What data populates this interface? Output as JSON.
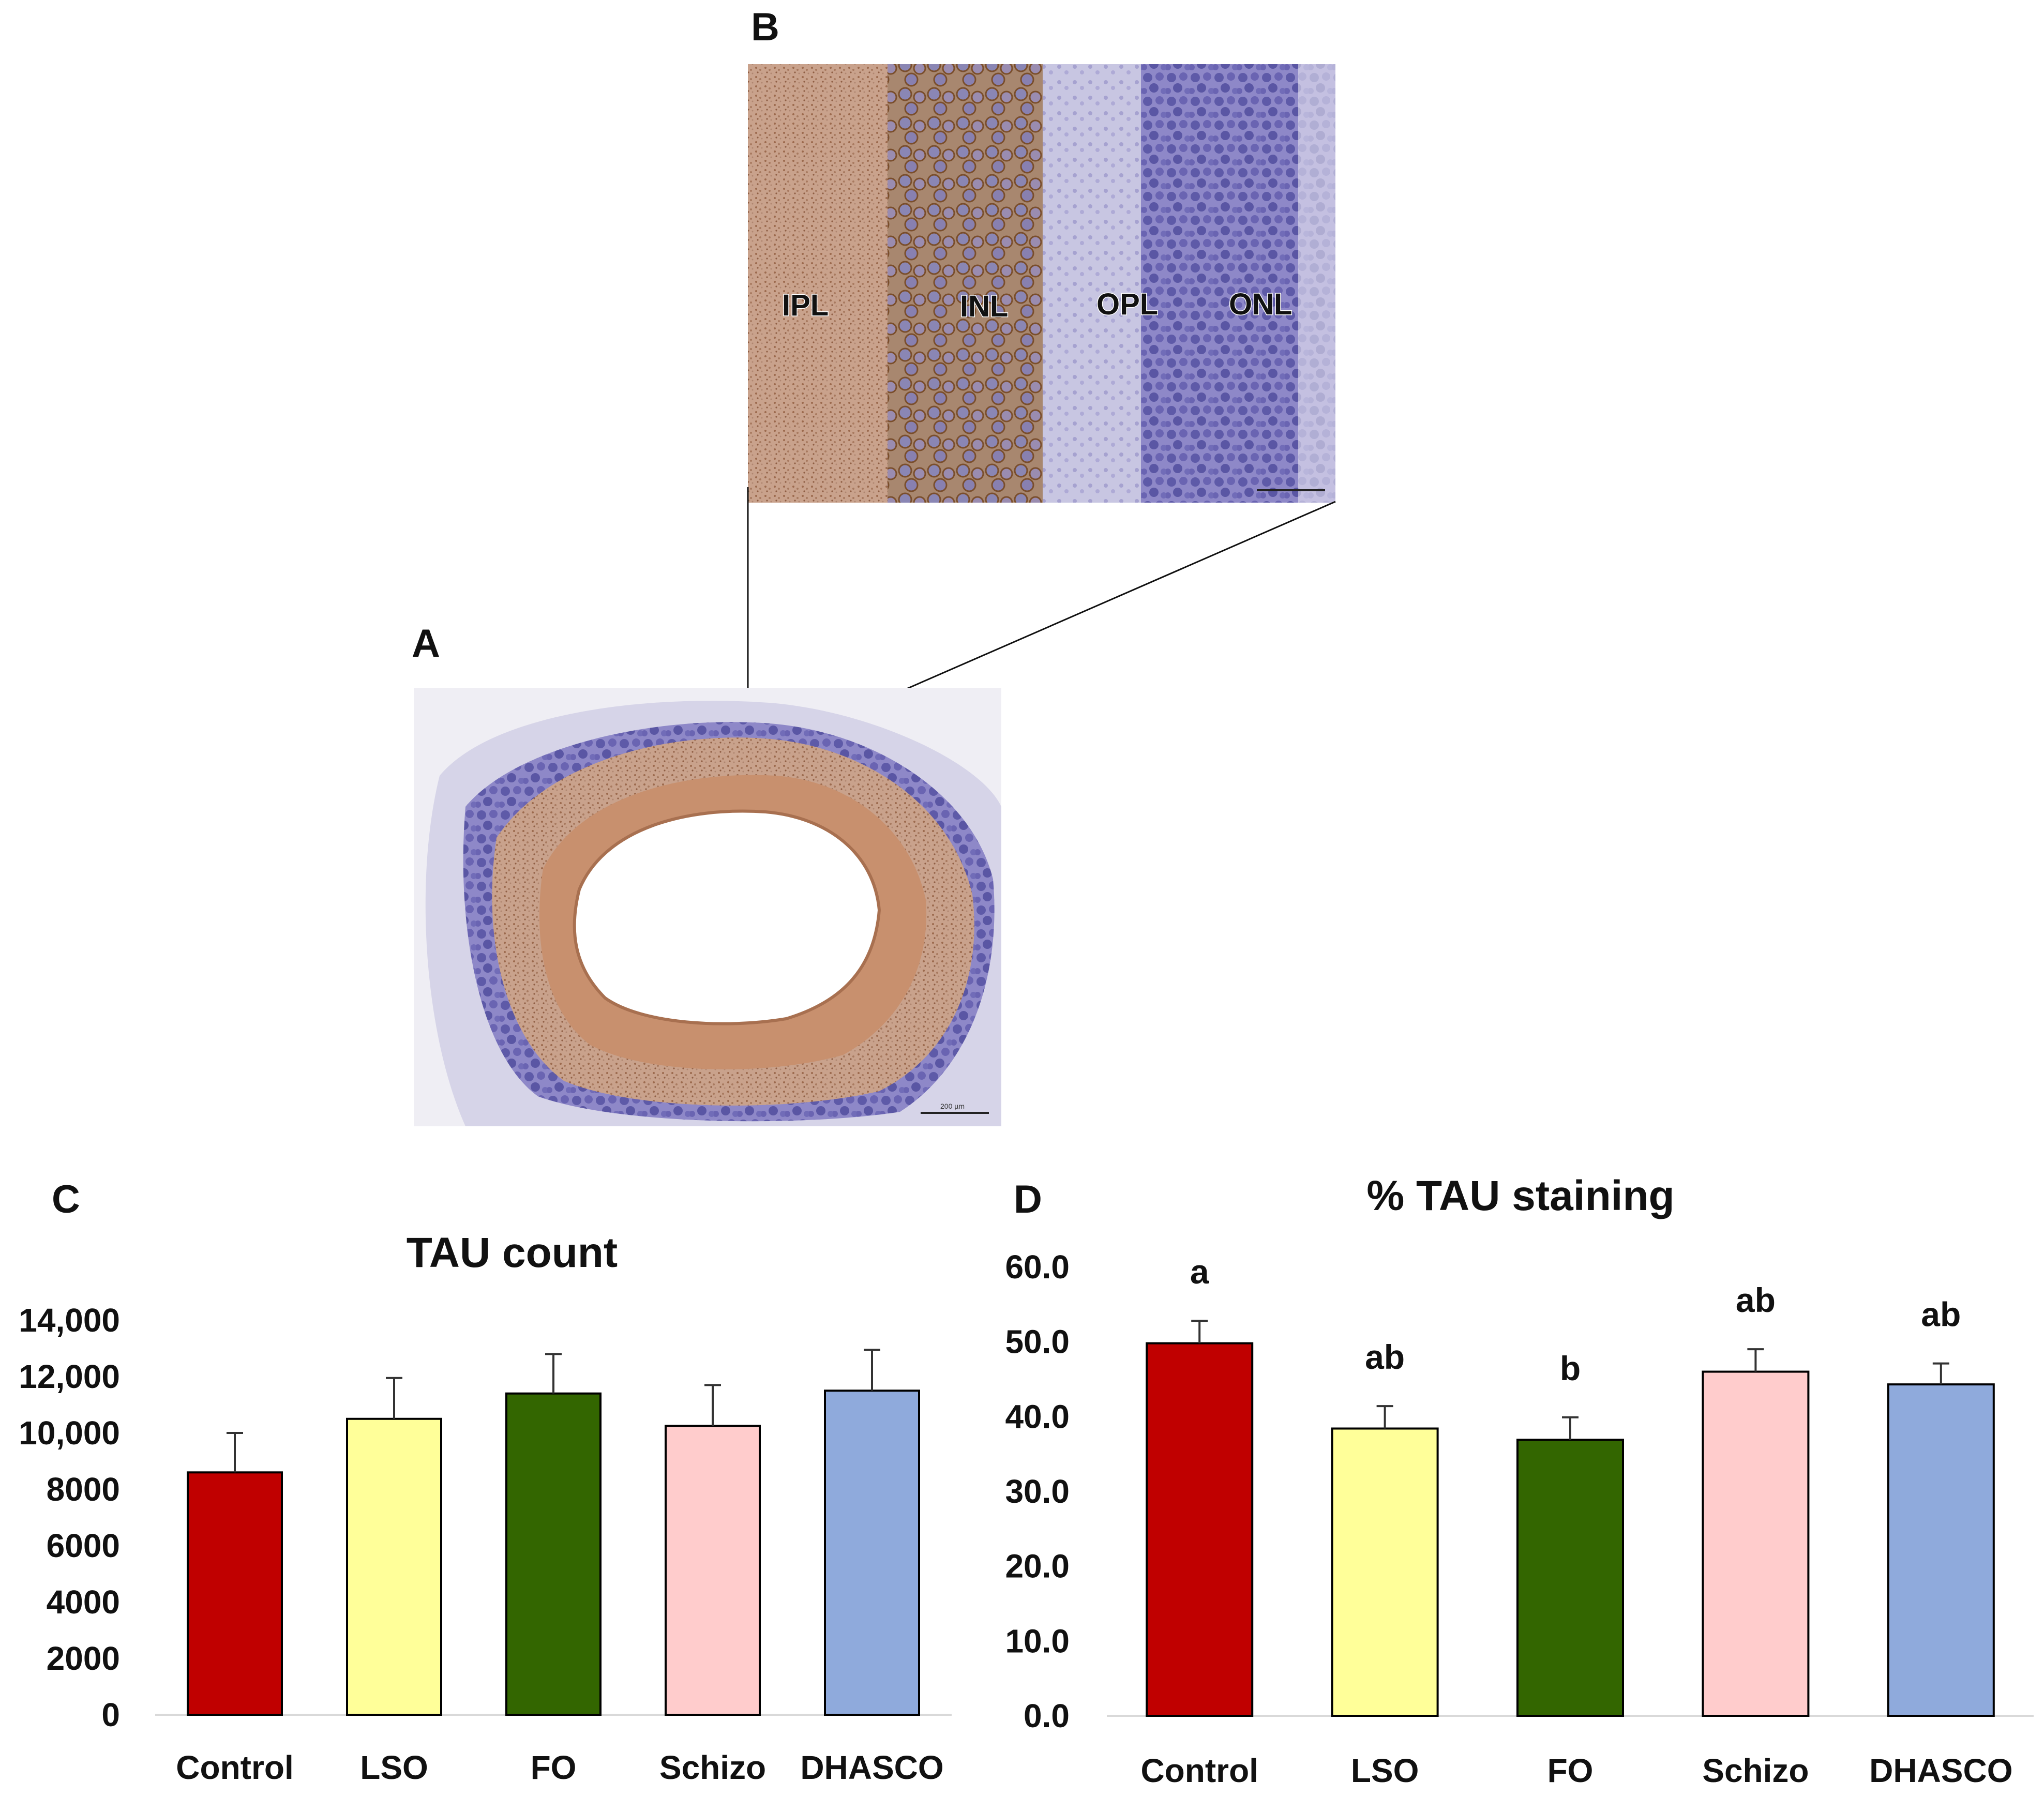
{
  "panels": {
    "A": "A",
    "B": "B",
    "C": "C",
    "D": "D"
  },
  "micrograph_b": {
    "layers": [
      "IPL",
      "INL",
      "OPL",
      "ONL"
    ]
  },
  "micrograph_a": {
    "scale_bar": "200 µm"
  },
  "chart_data": [
    {
      "type": "bar",
      "title": "TAU count",
      "categories": [
        "Control",
        "LSO",
        "FO",
        "Schizo",
        "DHASCO"
      ],
      "values": [
        8600,
        10500,
        11400,
        10250,
        11500
      ],
      "errors": [
        1400,
        1450,
        1400,
        1450,
        1450
      ],
      "yticks": [
        "0",
        "2000",
        "4000",
        "6000",
        "8000",
        "10,000",
        "12,000",
        "14,000"
      ],
      "ylim": [
        0,
        14000
      ],
      "colors": [
        "#c00000",
        "#ffff99",
        "#336600",
        "#ffcccc",
        "#8faadc"
      ],
      "grid": false
    },
    {
      "type": "bar",
      "title": "% TAU staining",
      "categories": [
        "Control",
        "LSO",
        "FO",
        "Schizo",
        "DHASCO"
      ],
      "values": [
        49.8,
        38.4,
        36.9,
        46.0,
        44.3
      ],
      "errors": [
        3.0,
        3.0,
        3.0,
        3.0,
        2.8
      ],
      "significance": [
        "a",
        "ab",
        "b",
        "ab",
        "ab"
      ],
      "yticks": [
        "0.0",
        "10.0",
        "20.0",
        "30.0",
        "40.0",
        "50.0",
        "60.0"
      ],
      "ylim": [
        0,
        60
      ],
      "colors": [
        "#c00000",
        "#ffff99",
        "#336600",
        "#ffcccc",
        "#8faadc"
      ],
      "grid": false
    }
  ]
}
